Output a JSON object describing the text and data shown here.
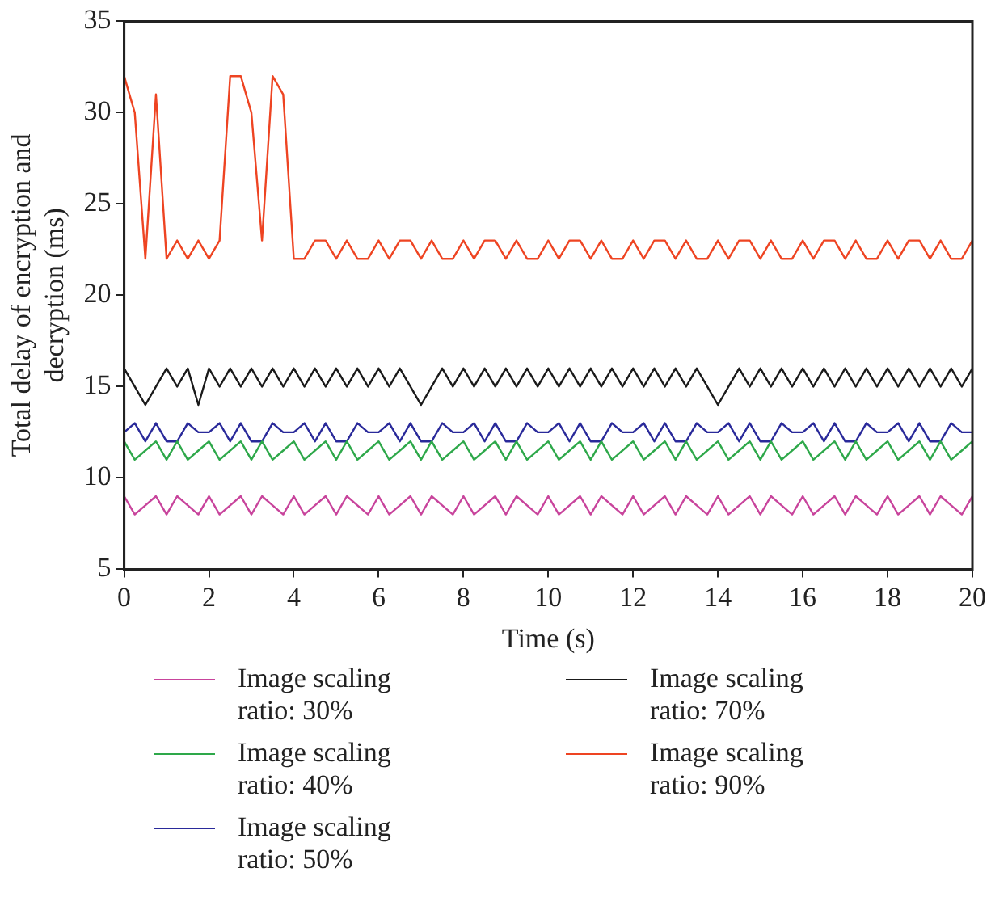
{
  "chart_data": {
    "type": "line",
    "xlabel": "Time (s)",
    "ylabel": "Total delay of encryption and decryption (ms)",
    "xlim": [
      0,
      20
    ],
    "xticks": [
      0,
      2,
      4,
      6,
      8,
      10,
      12,
      14,
      16,
      18,
      20
    ],
    "ylim": [
      5,
      35
    ],
    "yticks": [
      5,
      10,
      15,
      20,
      25,
      30,
      35
    ],
    "grid": false,
    "legend": "bottom",
    "marker": "none",
    "x": [
      0,
      0.25,
      0.5,
      0.75,
      1,
      1.25,
      1.5,
      1.75,
      2,
      2.25,
      2.5,
      2.75,
      3,
      3.25,
      3.5,
      3.75,
      4,
      4.25,
      4.5,
      4.75,
      5,
      5.25,
      5.5,
      5.75,
      6,
      6.25,
      6.5,
      6.75,
      7,
      7.25,
      7.5,
      7.75,
      8,
      8.25,
      8.5,
      8.75,
      9,
      9.25,
      9.5,
      9.75,
      10,
      10.25,
      10.5,
      10.75,
      11,
      11.25,
      11.5,
      11.75,
      12,
      12.25,
      12.5,
      12.75,
      13,
      13.25,
      13.5,
      13.75,
      14,
      14.25,
      14.5,
      14.75,
      15,
      15.25,
      15.5,
      15.75,
      16,
      16.25,
      16.5,
      16.75,
      17,
      17.25,
      17.5,
      17.75,
      18,
      18.25,
      18.5,
      18.75,
      19,
      19.25,
      19.5,
      19.75,
      20
    ],
    "series": [
      {
        "name": "Image scaling ratio: 30%",
        "color": "#c8449c",
        "values": [
          9,
          8,
          8.5,
          9,
          8,
          9,
          8.5,
          8,
          9,
          8,
          8.5,
          9,
          8,
          9,
          8.5,
          8,
          9,
          8,
          8.5,
          9,
          8,
          9,
          8.5,
          8,
          9,
          8,
          8.5,
          9,
          8,
          9,
          8.5,
          8,
          9,
          8,
          8.5,
          9,
          8,
          9,
          8.5,
          8,
          9,
          8,
          8.5,
          9,
          8,
          9,
          8.5,
          8,
          9,
          8,
          8.5,
          9,
          8,
          9,
          8.5,
          8,
          9,
          8,
          8.5,
          9,
          8,
          9,
          8.5,
          8,
          9,
          8,
          8.5,
          9,
          8,
          9,
          8.5,
          8,
          9,
          8,
          8.5,
          9,
          8,
          9,
          8.5,
          8,
          9
        ]
      },
      {
        "name": "Image scaling ratio: 40%",
        "color": "#2ea84a",
        "values": [
          12,
          11,
          11.5,
          12,
          11,
          12,
          11,
          11.5,
          12,
          11,
          11.5,
          12,
          11,
          12,
          11,
          11.5,
          12,
          11,
          11.5,
          12,
          11,
          12,
          11,
          11.5,
          12,
          11,
          11.5,
          12,
          11,
          12,
          11,
          11.5,
          12,
          11,
          11.5,
          12,
          11,
          12,
          11,
          11.5,
          12,
          11,
          11.5,
          12,
          11,
          12,
          11,
          11.5,
          12,
          11,
          11.5,
          12,
          11,
          12,
          11,
          11.5,
          12,
          11,
          11.5,
          12,
          11,
          12,
          11,
          11.5,
          12,
          11,
          11.5,
          12,
          11,
          12,
          11,
          11.5,
          12,
          11,
          11.5,
          12,
          11,
          12,
          11,
          11.5,
          12
        ]
      },
      {
        "name": "Image scaling ratio: 50%",
        "color": "#2a2a9a",
        "values": [
          12.5,
          13,
          12,
          13,
          12,
          12,
          13,
          12.5,
          12.5,
          13,
          12,
          13,
          12,
          12,
          13,
          12.5,
          12.5,
          13,
          12,
          13,
          12,
          12,
          13,
          12.5,
          12.5,
          13,
          12,
          13,
          12,
          12,
          13,
          12.5,
          12.5,
          13,
          12,
          13,
          12,
          12,
          13,
          12.5,
          12.5,
          13,
          12,
          13,
          12,
          12,
          13,
          12.5,
          12.5,
          13,
          12,
          13,
          12,
          12,
          13,
          12.5,
          12.5,
          13,
          12,
          13,
          12,
          12,
          13,
          12.5,
          12.5,
          13,
          12,
          13,
          12,
          12,
          13,
          12.5,
          12.5,
          13,
          12,
          13,
          12,
          12,
          13,
          12.5,
          12.5
        ]
      },
      {
        "name": "Image scaling ratio: 70%",
        "color": "#1a1a1a",
        "values": [
          16,
          15,
          14,
          15,
          16,
          15,
          16,
          14,
          16,
          15,
          16,
          15,
          16,
          15,
          16,
          15,
          16,
          15,
          16,
          15,
          16,
          15,
          16,
          15,
          16,
          15,
          16,
          15,
          14,
          15,
          16,
          15,
          16,
          15,
          16,
          15,
          16,
          15,
          16,
          15,
          16,
          15,
          16,
          15,
          16,
          15,
          16,
          15,
          16,
          15,
          16,
          15,
          16,
          15,
          16,
          15,
          14,
          15,
          16,
          15,
          16,
          15,
          16,
          15,
          16,
          15,
          16,
          15,
          16,
          15,
          16,
          15,
          16,
          15,
          16,
          15,
          16,
          15,
          16,
          15,
          16
        ]
      },
      {
        "name": "Image scaling ratio: 90%",
        "color": "#ee4422",
        "values": [
          32,
          30,
          22,
          31,
          22,
          23,
          22,
          23,
          22,
          23,
          32,
          32,
          30,
          23,
          32,
          31,
          22,
          22,
          23,
          23,
          22,
          23,
          22,
          22,
          23,
          22,
          23,
          23,
          22,
          23,
          22,
          22,
          23,
          22,
          23,
          23,
          22,
          23,
          22,
          22,
          23,
          22,
          23,
          23,
          22,
          23,
          22,
          22,
          23,
          22,
          23,
          23,
          22,
          23,
          22,
          22,
          23,
          22,
          23,
          23,
          22,
          23,
          22,
          22,
          23,
          22,
          23,
          23,
          22,
          23,
          22,
          22,
          23,
          22,
          23,
          23,
          22,
          23,
          22,
          22,
          23
        ]
      }
    ]
  }
}
